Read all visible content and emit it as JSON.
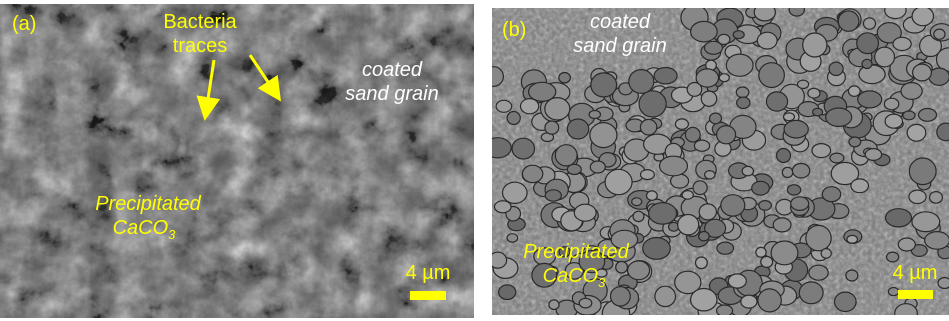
{
  "panels": [
    {
      "label": "(a)",
      "annotation": [
        "Bacteria",
        "traces"
      ],
      "grain": [
        "coated",
        "sand grain"
      ],
      "precipitate": {
        "line1": "Precipitated",
        "line2": {
          "text": "CaCO",
          "subscript": "3"
        }
      },
      "scale_bar": "4 µm"
    },
    {
      "label": "(b)",
      "grain": [
        "coated",
        "sand grain"
      ],
      "precipitate": {
        "line1": "Precipitated",
        "line2": {
          "text": "CaCO",
          "subscript": "3"
        }
      },
      "scale_bar": "4 µm"
    }
  ]
}
